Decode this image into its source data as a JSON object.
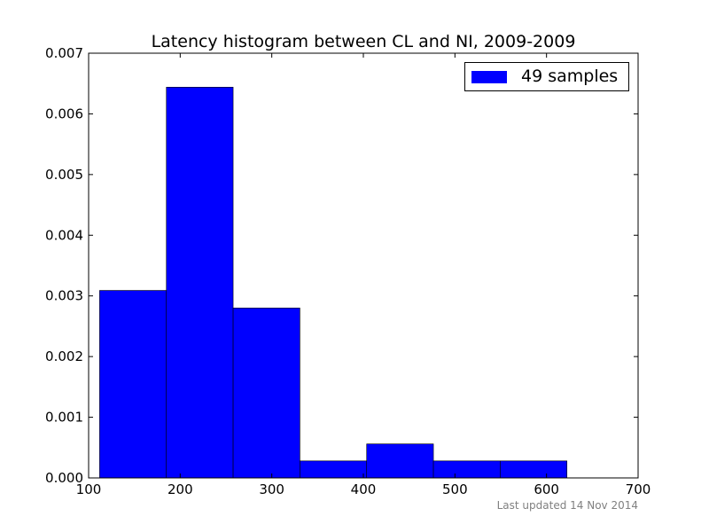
{
  "chart_data": {
    "type": "bar",
    "title": "Latency histogram between CL and NI, 2009-2009",
    "xlabel": "",
    "ylabel": "",
    "xlim": [
      100,
      700
    ],
    "ylim": [
      0,
      0.007
    ],
    "x_ticks": [
      "100",
      "200",
      "300",
      "400",
      "500",
      "600",
      "700"
    ],
    "y_ticks": [
      "0.000",
      "0.001",
      "0.002",
      "0.003",
      "0.004",
      "0.005",
      "0.006",
      "0.007"
    ],
    "bins": [
      {
        "start": 112.0,
        "end": 184.9,
        "value": 0.00309
      },
      {
        "start": 184.9,
        "end": 257.8,
        "value": 0.00644
      },
      {
        "start": 257.8,
        "end": 330.7,
        "value": 0.0028
      },
      {
        "start": 330.7,
        "end": 403.6,
        "value": 0.00028
      },
      {
        "start": 403.6,
        "end": 476.5,
        "value": 0.00056
      },
      {
        "start": 476.5,
        "end": 549.4,
        "value": 0.00028
      },
      {
        "start": 549.4,
        "end": 622.3,
        "value": 0.00028
      }
    ],
    "series": [
      {
        "name": "49 samples"
      }
    ],
    "legend_position": "top-right",
    "grid": false,
    "bar_color": "#0000ff"
  },
  "footer": "Last updated 14 Nov 2014"
}
